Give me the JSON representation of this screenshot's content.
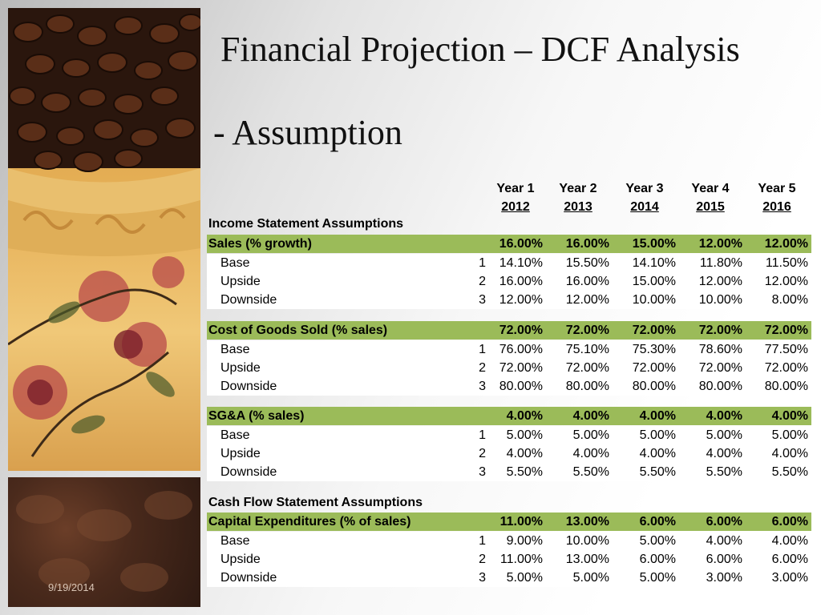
{
  "slide": {
    "title": "Financial Projection – DCF Analysis",
    "subtitle": "- Assumption",
    "date": "9/19/2014"
  },
  "columns": [
    {
      "label": "Year 1",
      "year": "2012"
    },
    {
      "label": "Year 2",
      "year": "2013"
    },
    {
      "label": "Year 3",
      "year": "2014"
    },
    {
      "label": "Year 4",
      "year": "2015"
    },
    {
      "label": "Year 5",
      "year": "2016"
    }
  ],
  "sections": {
    "income": "Income Statement Assumptions",
    "cashflow": "Cash Flow Statement Assumptions"
  },
  "groups": [
    {
      "name": "Sales (% growth)",
      "selected": [
        "16.00%",
        "16.00%",
        "15.00%",
        "12.00%",
        "12.00%"
      ],
      "scenarios": [
        {
          "label": "Base",
          "index": "1",
          "values": [
            "14.10%",
            "15.50%",
            "14.10%",
            "11.80%",
            "11.50%"
          ]
        },
        {
          "label": "Upside",
          "index": "2",
          "values": [
            "16.00%",
            "16.00%",
            "15.00%",
            "12.00%",
            "12.00%"
          ]
        },
        {
          "label": "Downside",
          "index": "3",
          "values": [
            "12.00%",
            "12.00%",
            "10.00%",
            "10.00%",
            "8.00%"
          ]
        }
      ]
    },
    {
      "name": "Cost of Goods Sold (% sales)",
      "selected": [
        "72.00%",
        "72.00%",
        "72.00%",
        "72.00%",
        "72.00%"
      ],
      "scenarios": [
        {
          "label": "Base",
          "index": "1",
          "values": [
            "76.00%",
            "75.10%",
            "75.30%",
            "78.60%",
            "77.50%"
          ]
        },
        {
          "label": "Upside",
          "index": "2",
          "values": [
            "72.00%",
            "72.00%",
            "72.00%",
            "72.00%",
            "72.00%"
          ]
        },
        {
          "label": "Downside",
          "index": "3",
          "values": [
            "80.00%",
            "80.00%",
            "80.00%",
            "80.00%",
            "80.00%"
          ]
        }
      ]
    },
    {
      "name": "SG&A (% sales)",
      "selected": [
        "4.00%",
        "4.00%",
        "4.00%",
        "4.00%",
        "4.00%"
      ],
      "scenarios": [
        {
          "label": "Base",
          "index": "1",
          "values": [
            "5.00%",
            "5.00%",
            "5.00%",
            "5.00%",
            "5.00%"
          ]
        },
        {
          "label": "Upside",
          "index": "2",
          "values": [
            "4.00%",
            "4.00%",
            "4.00%",
            "4.00%",
            "4.00%"
          ]
        },
        {
          "label": "Downside",
          "index": "3",
          "values": [
            "5.50%",
            "5.50%",
            "5.50%",
            "5.50%",
            "5.50%"
          ]
        }
      ]
    },
    {
      "name": "Capital Expenditures (% of sales)",
      "selected": [
        "11.00%",
        "13.00%",
        "6.00%",
        "6.00%",
        "6.00%"
      ],
      "scenarios": [
        {
          "label": "Base",
          "index": "1",
          "values": [
            "9.00%",
            "10.00%",
            "5.00%",
            "4.00%",
            "4.00%"
          ]
        },
        {
          "label": "Upside",
          "index": "2",
          "values": [
            "11.00%",
            "13.00%",
            "6.00%",
            "6.00%",
            "6.00%"
          ]
        },
        {
          "label": "Downside",
          "index": "3",
          "values": [
            "5.00%",
            "5.00%",
            "5.00%",
            "3.00%",
            "3.00%"
          ]
        }
      ]
    }
  ],
  "colors": {
    "header_band": "#9bbb59"
  }
}
